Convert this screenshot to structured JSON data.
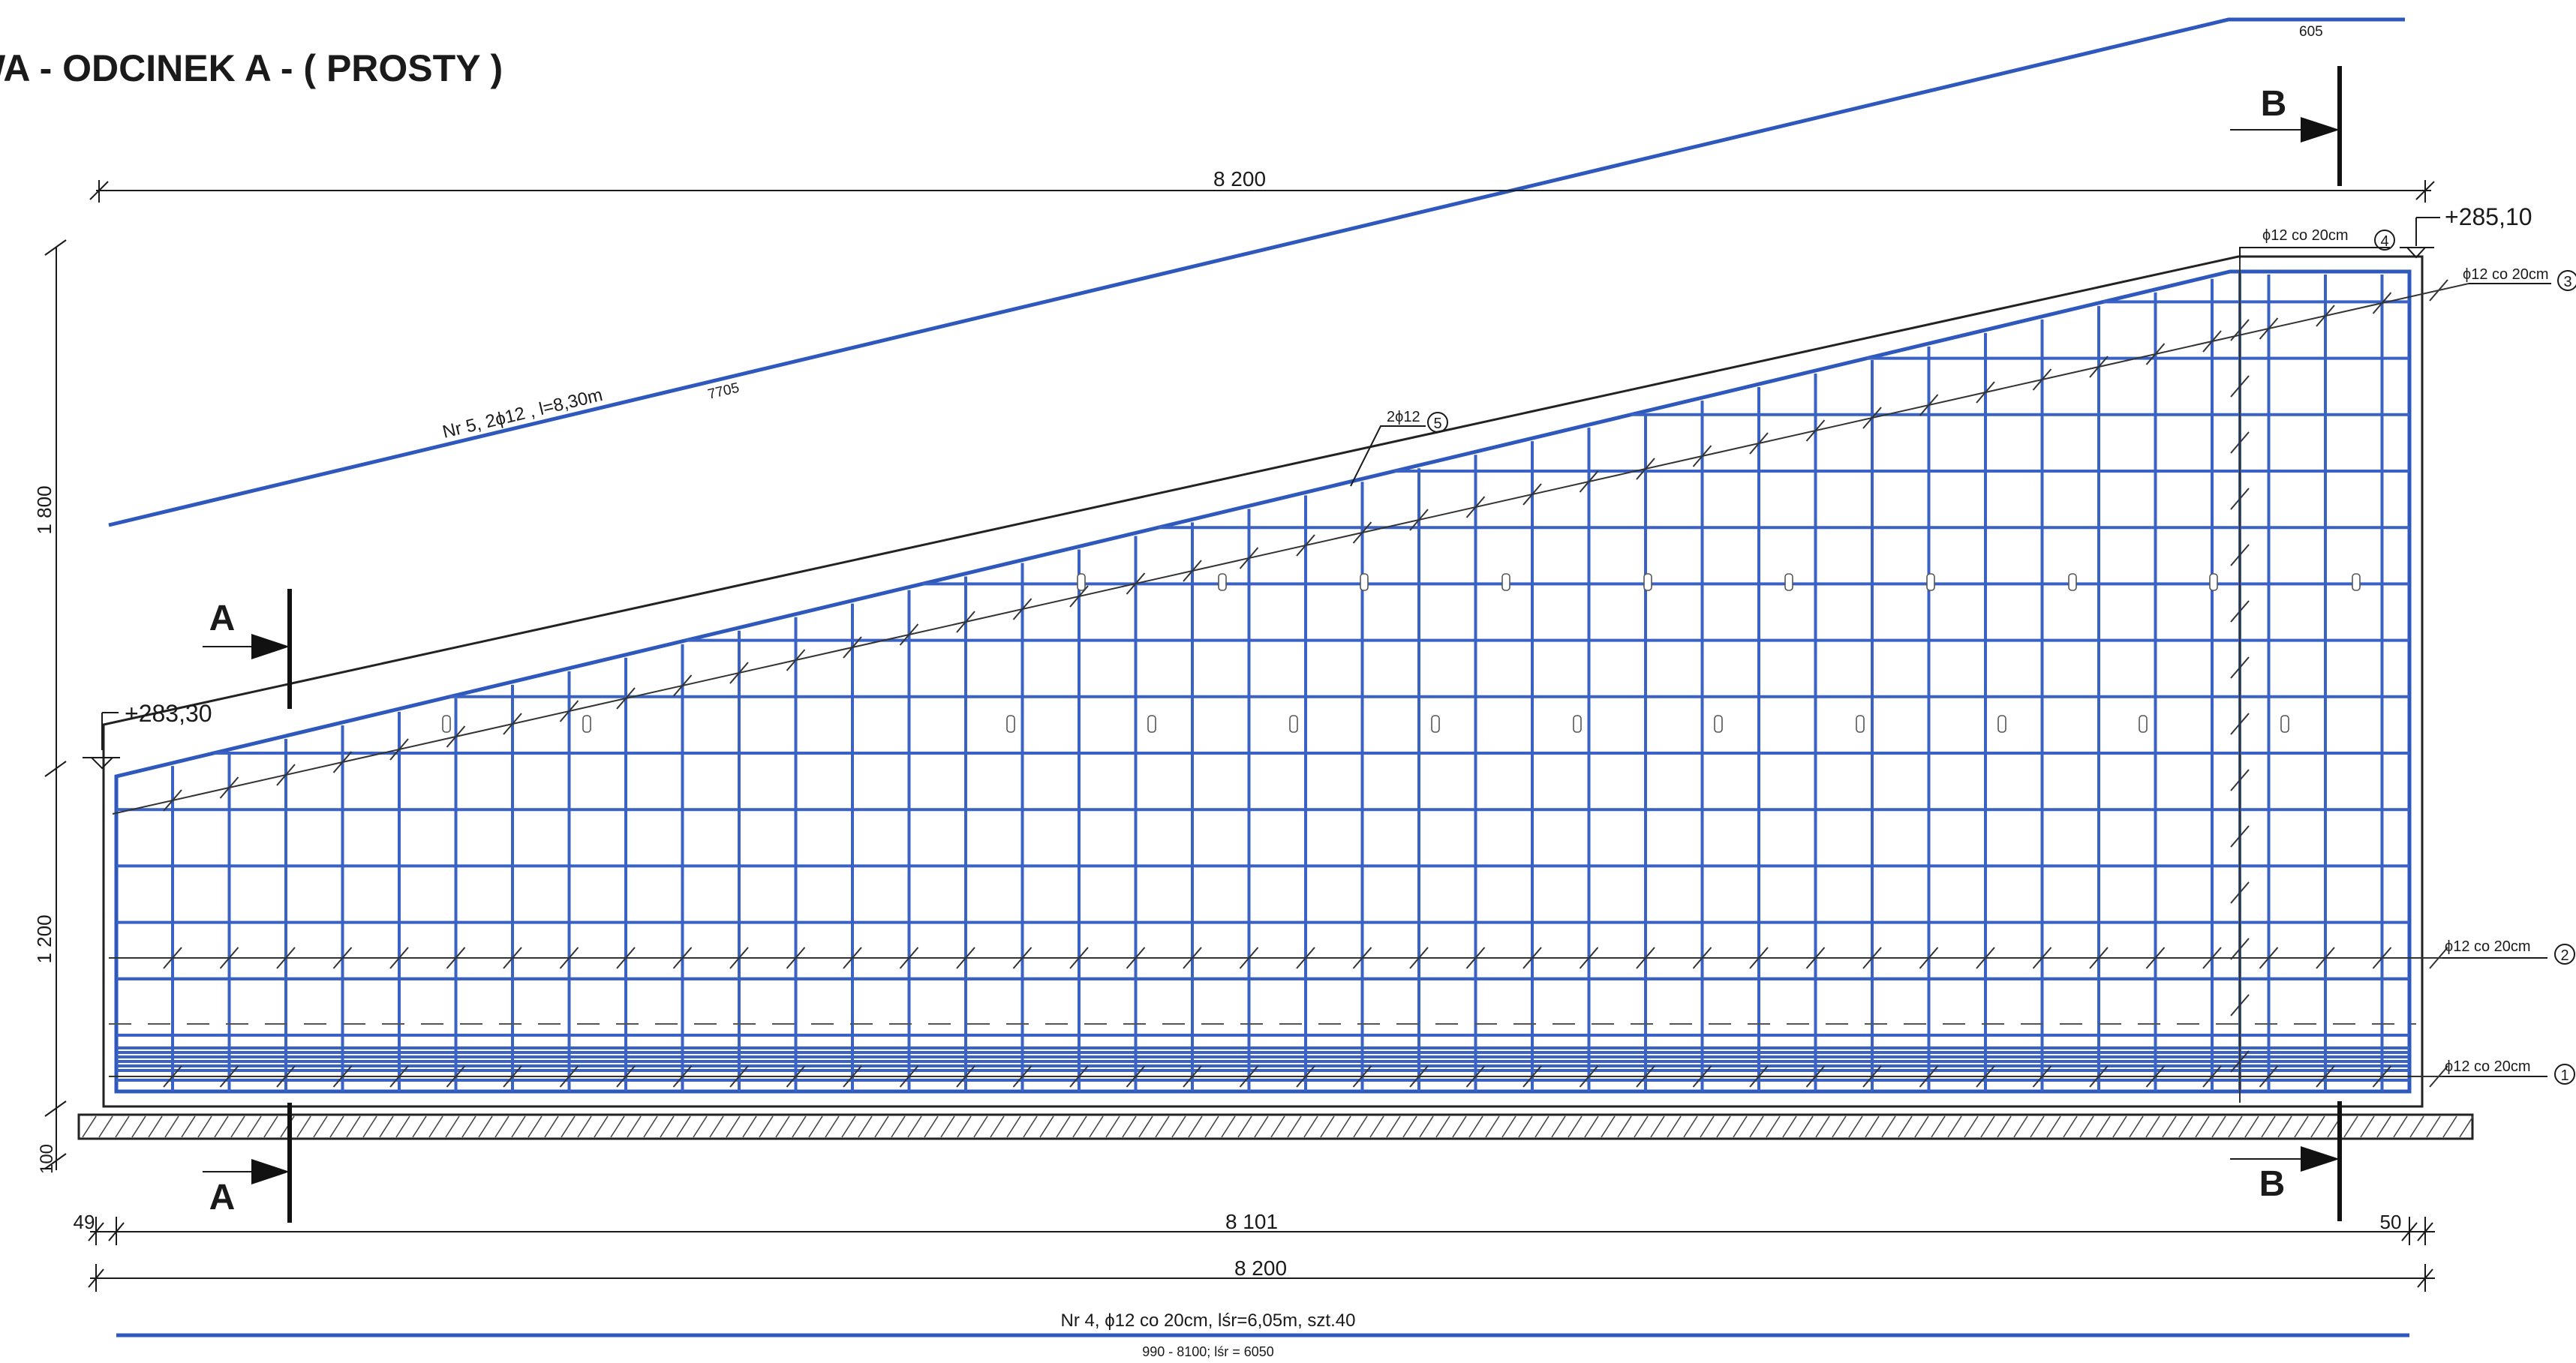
{
  "title": "WA - ODCINEK A - ( PROSTY )",
  "colors": {
    "rebar": "#3a62c4",
    "line": "#1a1a1a"
  },
  "top_bar": {
    "label": "Nr 5, 2ϕ12 , l=8,30m",
    "length": "7705",
    "end_length": "605"
  },
  "dimensions": {
    "top_total": "8 200",
    "height_upper": "1 800",
    "height_lower": "1 200",
    "base_thickness": "100",
    "bottom_left": "49",
    "bottom_middle": "8 101",
    "bottom_right": "50",
    "bottom_total": "8 200"
  },
  "elevations": {
    "left": "+283,30",
    "right": "+285,10"
  },
  "section_marks": {
    "a": "A",
    "b": "B"
  },
  "callouts": [
    {
      "text": "ϕ12 co 20cm",
      "number": "4"
    },
    {
      "text": "ϕ12 co 20cm",
      "number": "3"
    },
    {
      "text": "ϕ12 co 20cm",
      "number": "2"
    },
    {
      "text": "ϕ12 co 20cm",
      "number": "1"
    },
    {
      "text": "2ϕ12",
      "number": "5"
    }
  ],
  "bottom_bar": {
    "label": "Nr 4, ϕ12 co 20cm, lśr=6,05m, szt.40",
    "sub": "990 - 8100; lśr = 6050"
  }
}
